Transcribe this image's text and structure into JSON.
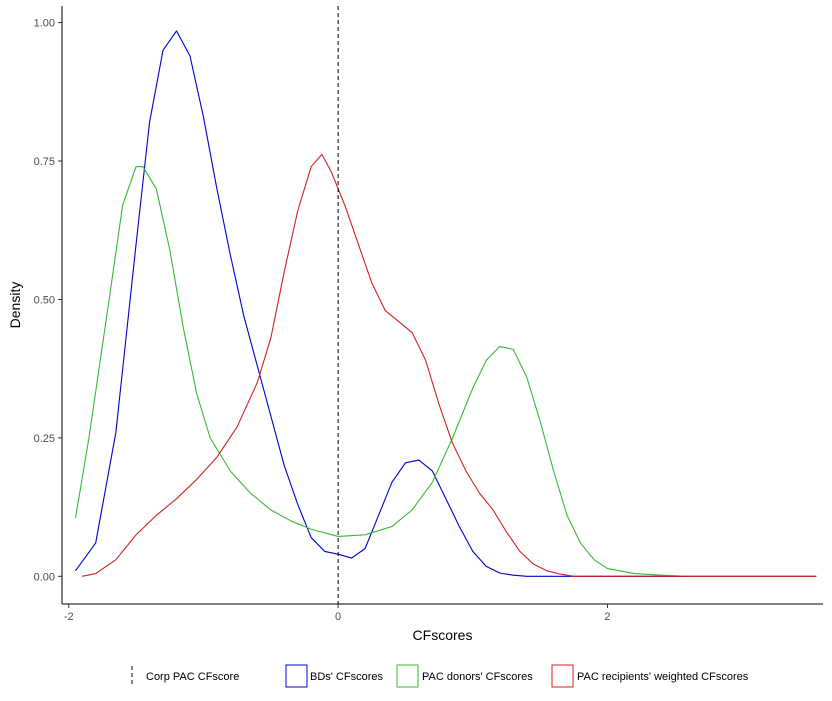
{
  "chart_data": {
    "type": "line",
    "subtype": "density",
    "xlabel": "CFscores",
    "ylabel": "Density",
    "xlim": [
      -2.05,
      3.6
    ],
    "ylim": [
      -0.05,
      1.03
    ],
    "xticks": [
      {
        "value": -2,
        "label": "-2"
      },
      {
        "value": 0,
        "label": "0"
      },
      {
        "value": 2,
        "label": "2"
      }
    ],
    "yticks": [
      {
        "value": 0,
        "label": "0.00"
      },
      {
        "value": 0.25,
        "label": "0.25"
      },
      {
        "value": 0.5,
        "label": "0.50"
      },
      {
        "value": 0.75,
        "label": "0.75"
      },
      {
        "value": 1,
        "label": "1.00"
      }
    ],
    "grid": false,
    "legend_position": "bottom",
    "vline": {
      "x": 0,
      "style": "dashed",
      "name": "Corp PAC CFscore",
      "color": "#000000"
    },
    "series": [
      {
        "name": "BDs' CFscores",
        "color": "#0000CC",
        "points": [
          [
            -1.95,
            0.01
          ],
          [
            -1.8,
            0.06
          ],
          [
            -1.65,
            0.26
          ],
          [
            -1.5,
            0.6
          ],
          [
            -1.4,
            0.82
          ],
          [
            -1.3,
            0.95
          ],
          [
            -1.2,
            0.985
          ],
          [
            -1.1,
            0.94
          ],
          [
            -1.0,
            0.83
          ],
          [
            -0.9,
            0.7
          ],
          [
            -0.8,
            0.58
          ],
          [
            -0.7,
            0.47
          ],
          [
            -0.6,
            0.38
          ],
          [
            -0.5,
            0.29
          ],
          [
            -0.4,
            0.2
          ],
          [
            -0.3,
            0.13
          ],
          [
            -0.2,
            0.07
          ],
          [
            -0.1,
            0.045
          ],
          [
            0.0,
            0.04
          ],
          [
            0.1,
            0.033
          ],
          [
            0.2,
            0.05
          ],
          [
            0.3,
            0.11
          ],
          [
            0.4,
            0.17
          ],
          [
            0.5,
            0.205
          ],
          [
            0.6,
            0.21
          ],
          [
            0.7,
            0.19
          ],
          [
            0.8,
            0.14
          ],
          [
            0.9,
            0.09
          ],
          [
            1.0,
            0.045
          ],
          [
            1.1,
            0.018
          ],
          [
            1.2,
            0.006
          ],
          [
            1.3,
            0.002
          ],
          [
            1.4,
            0.0
          ],
          [
            3.55,
            0.0
          ]
        ]
      },
      {
        "name": "PAC donors' CFscores",
        "color": "#33BB33",
        "points": [
          [
            -1.95,
            0.105
          ],
          [
            -1.85,
            0.25
          ],
          [
            -1.7,
            0.5
          ],
          [
            -1.6,
            0.67
          ],
          [
            -1.5,
            0.74
          ],
          [
            -1.45,
            0.74
          ],
          [
            -1.35,
            0.7
          ],
          [
            -1.25,
            0.59
          ],
          [
            -1.15,
            0.45
          ],
          [
            -1.05,
            0.33
          ],
          [
            -0.95,
            0.25
          ],
          [
            -0.8,
            0.19
          ],
          [
            -0.65,
            0.15
          ],
          [
            -0.5,
            0.12
          ],
          [
            -0.35,
            0.1
          ],
          [
            -0.2,
            0.085
          ],
          [
            0.0,
            0.072
          ],
          [
            0.2,
            0.075
          ],
          [
            0.4,
            0.09
          ],
          [
            0.55,
            0.12
          ],
          [
            0.7,
            0.17
          ],
          [
            0.85,
            0.25
          ],
          [
            1.0,
            0.34
          ],
          [
            1.1,
            0.39
          ],
          [
            1.2,
            0.415
          ],
          [
            1.3,
            0.41
          ],
          [
            1.4,
            0.36
          ],
          [
            1.5,
            0.28
          ],
          [
            1.6,
            0.19
          ],
          [
            1.7,
            0.11
          ],
          [
            1.8,
            0.06
          ],
          [
            1.9,
            0.03
          ],
          [
            2.0,
            0.014
          ],
          [
            2.2,
            0.005
          ],
          [
            2.4,
            0.002
          ],
          [
            2.6,
            0.0
          ],
          [
            3.55,
            0.0
          ]
        ]
      },
      {
        "name": "PAC recipients' weighted CFscores",
        "color": "#CC2222",
        "points": [
          [
            -1.9,
            0.0
          ],
          [
            -1.8,
            0.005
          ],
          [
            -1.65,
            0.03
          ],
          [
            -1.5,
            0.075
          ],
          [
            -1.35,
            0.11
          ],
          [
            -1.2,
            0.14
          ],
          [
            -1.05,
            0.175
          ],
          [
            -0.9,
            0.215
          ],
          [
            -0.75,
            0.27
          ],
          [
            -0.6,
            0.35
          ],
          [
            -0.5,
            0.43
          ],
          [
            -0.4,
            0.55
          ],
          [
            -0.3,
            0.66
          ],
          [
            -0.2,
            0.74
          ],
          [
            -0.12,
            0.762
          ],
          [
            -0.05,
            0.73
          ],
          [
            0.05,
            0.67
          ],
          [
            0.15,
            0.6
          ],
          [
            0.25,
            0.53
          ],
          [
            0.35,
            0.48
          ],
          [
            0.45,
            0.46
          ],
          [
            0.55,
            0.44
          ],
          [
            0.65,
            0.39
          ],
          [
            0.75,
            0.31
          ],
          [
            0.85,
            0.24
          ],
          [
            0.95,
            0.19
          ],
          [
            1.05,
            0.15
          ],
          [
            1.15,
            0.12
          ],
          [
            1.25,
            0.08
          ],
          [
            1.35,
            0.045
          ],
          [
            1.45,
            0.022
          ],
          [
            1.55,
            0.01
          ],
          [
            1.65,
            0.004
          ],
          [
            1.75,
            0.0
          ],
          [
            3.55,
            0.0
          ]
        ]
      }
    ]
  },
  "legend": {
    "items": [
      {
        "label": "Corp PAC CFscore",
        "color": "#000000",
        "kind": "dashed"
      },
      {
        "label": "BDs' CFscores",
        "color": "#0000CC",
        "kind": "box"
      },
      {
        "label": "PAC donors' CFscores",
        "color": "#33BB33",
        "kind": "box"
      },
      {
        "label": "PAC recipients' weighted CFscores",
        "color": "#CC2222",
        "kind": "box"
      }
    ]
  }
}
